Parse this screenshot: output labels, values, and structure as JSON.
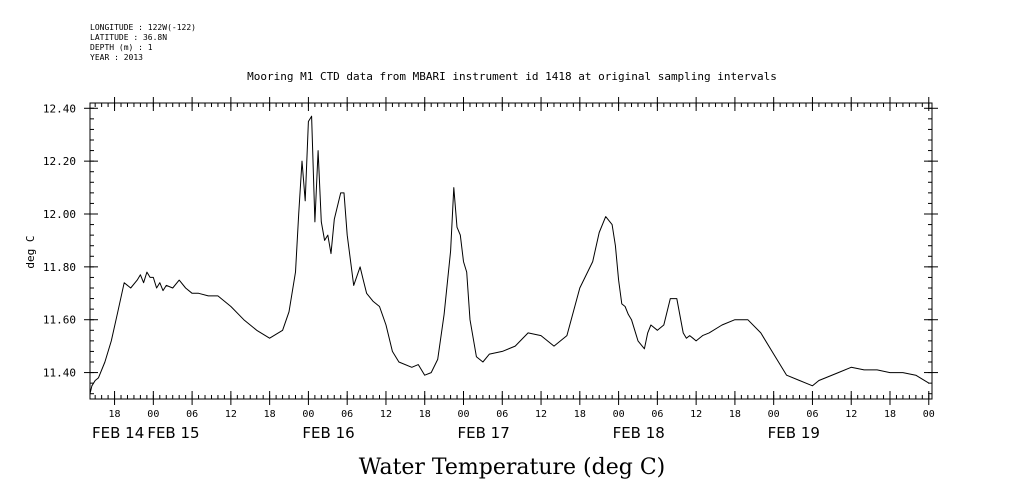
{
  "header": {
    "longitude": "LONGITUDE : 122W(-122)",
    "latitude": "LATITUDE : 36.8N",
    "depth": "DEPTH (m) : 1",
    "year": "YEAR : 2013"
  },
  "chart_data": {
    "type": "line",
    "title": "Mooring M1 CTD data from MBARI instrument id 1418 at original sampling intervals",
    "ylabel": "deg C",
    "xlabel": "Water Temperature (deg C)",
    "ylim": [
      11.3,
      12.42
    ],
    "x_unit": "hours after 2013-02-14 00:00",
    "xlim": [
      14.2,
      144.5
    ],
    "yticks": [
      11.4,
      11.6,
      11.8,
      12.0,
      12.2,
      12.4
    ],
    "ytick_labels": [
      "11.40",
      "11.60",
      "11.80",
      "12.00",
      "12.20",
      "12.40"
    ],
    "xticks": [
      18,
      24,
      30,
      36,
      42,
      48,
      54,
      60,
      66,
      72,
      78,
      84,
      90,
      96,
      102,
      108,
      114,
      120,
      126,
      132,
      138,
      144
    ],
    "xtick_labels": [
      "18",
      "00",
      "06",
      "12",
      "18",
      "00",
      "06",
      "12",
      "18",
      "00",
      "06",
      "12",
      "18",
      "00",
      "06",
      "12",
      "18",
      "00",
      "06",
      "12",
      "18",
      "00"
    ],
    "day_ticks": [
      0,
      24,
      48,
      72,
      96,
      120
    ],
    "day_labels": [
      "FEB 14",
      "FEB 15",
      "FEB 16",
      "FEB 17",
      "FEB 18",
      "FEB 19"
    ],
    "grid": false,
    "series": [
      {
        "color": "#000000",
        "x": [
          14.2,
          14.5,
          15.0,
          15.5,
          16.5,
          17.5,
          18.5,
          19.5,
          20.5,
          21.5,
          22.0,
          22.5,
          23.0,
          23.5,
          24.0,
          24.5,
          25.0,
          25.5,
          26.0,
          27.0,
          28.0,
          29.0,
          30.0,
          31.0,
          32.5,
          34.0,
          36.0,
          38.0,
          40.0,
          42.0,
          44.0,
          45.0,
          46.0,
          46.5,
          47.0,
          47.5,
          48.0,
          48.5,
          49.0,
          49.5,
          50.0,
          50.5,
          51.0,
          51.5,
          52.0,
          53.0,
          53.5,
          54.0,
          55.0,
          56.0,
          56.5,
          57.0,
          58.0,
          59.0,
          60.0,
          61.0,
          62.0,
          64.0,
          65.0,
          66.0,
          67.0,
          68.0,
          69.0,
          70.0,
          70.5,
          71.0,
          71.5,
          72.0,
          72.5,
          73.0,
          74.0,
          75.0,
          76.0,
          78.0,
          80.0,
          82.0,
          84.0,
          86.0,
          88.0,
          90.0,
          92.0,
          93.0,
          94.0,
          95.0,
          95.5,
          96.0,
          96.5,
          97.0,
          97.5,
          98.0,
          99.0,
          100.0,
          100.5,
          101.0,
          102.0,
          103.0,
          104.0,
          105.0,
          106.0,
          106.5,
          107.0,
          107.5,
          108.0,
          109.0,
          110.0,
          112.0,
          114.0,
          116.0,
          118.0,
          120.0,
          122.0,
          124.0,
          126.0,
          127.0,
          128.0,
          130.0,
          132.0,
          134.0,
          136.0,
          138.0,
          140.0,
          142.0,
          144.0
        ],
        "y": [
          11.32,
          11.35,
          11.37,
          11.38,
          11.44,
          11.52,
          11.63,
          11.74,
          11.72,
          11.75,
          11.77,
          11.74,
          11.78,
          11.76,
          11.76,
          11.72,
          11.74,
          11.71,
          11.73,
          11.72,
          11.75,
          11.72,
          11.7,
          11.7,
          11.69,
          11.69,
          11.65,
          11.6,
          11.56,
          11.53,
          11.56,
          11.63,
          11.78,
          12.0,
          12.2,
          12.05,
          12.35,
          12.37,
          11.97,
          12.24,
          11.97,
          11.9,
          11.92,
          11.85,
          11.98,
          12.08,
          12.08,
          11.92,
          11.73,
          11.8,
          11.75,
          11.7,
          11.67,
          11.65,
          11.58,
          11.48,
          11.44,
          11.42,
          11.43,
          11.39,
          11.4,
          11.45,
          11.62,
          11.86,
          12.1,
          11.95,
          11.92,
          11.82,
          11.78,
          11.6,
          11.46,
          11.44,
          11.47,
          11.48,
          11.5,
          11.55,
          11.54,
          11.5,
          11.54,
          11.72,
          11.82,
          11.93,
          11.99,
          11.96,
          11.88,
          11.75,
          11.66,
          11.65,
          11.62,
          11.6,
          11.52,
          11.49,
          11.55,
          11.58,
          11.56,
          11.58,
          11.68,
          11.68,
          11.55,
          11.53,
          11.54,
          11.53,
          11.52,
          11.54,
          11.55,
          11.58,
          11.6,
          11.6,
          11.55,
          11.47,
          11.39,
          11.37,
          11.35,
          11.37,
          11.38,
          11.4,
          11.42,
          11.41,
          11.41,
          11.4,
          11.4,
          11.39,
          11.36
        ]
      }
    ]
  }
}
